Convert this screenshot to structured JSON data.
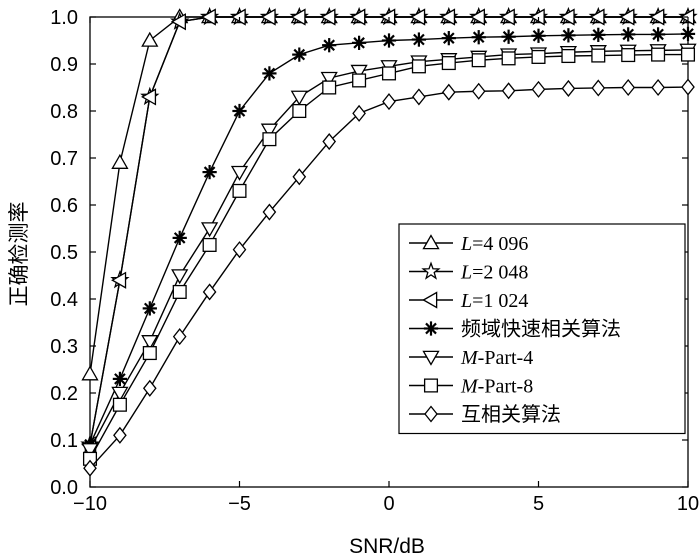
{
  "chart_data": {
    "type": "line",
    "xlabel": "SNR/dB",
    "ylabel": "正确检测率",
    "xlim": [
      -10,
      10
    ],
    "ylim": [
      0,
      1
    ],
    "xticks": [
      -10,
      -5,
      0,
      5,
      10
    ],
    "yticks": [
      0.0,
      0.1,
      0.2,
      0.3,
      0.4,
      0.5,
      0.6,
      0.7,
      0.8,
      0.9,
      1.0
    ],
    "xtick_labels": [
      "−10",
      "−5",
      "0",
      "5",
      "10"
    ],
    "ytick_labels": [
      "0.0",
      "0.1",
      "0.2",
      "0.3",
      "0.4",
      "0.5",
      "0.6",
      "0.7",
      "0.8",
      "0.9",
      "1.0"
    ],
    "grid": false,
    "legend_position": "center-right",
    "x": [
      -10,
      -9,
      -8,
      -7,
      -6,
      -5,
      -4,
      -3,
      -2,
      -1,
      0,
      1,
      2,
      3,
      4,
      5,
      6,
      7,
      8,
      9,
      10
    ],
    "series": [
      {
        "name": "L=4 096",
        "legend_italic": "L",
        "legend_rest": "=4 096",
        "marker": "triangle-up",
        "values": [
          0.24,
          0.69,
          0.95,
          1.0,
          1.0,
          1.0,
          1.0,
          1.0,
          1.0,
          1.0,
          1.0,
          1.0,
          1.0,
          1.0,
          1.0,
          1.0,
          1.0,
          1.0,
          1.0,
          1.0,
          1.0
        ]
      },
      {
        "name": "L=2 048",
        "legend_italic": "L",
        "legend_rest": "=2 048",
        "marker": "star",
        "values": [
          0.09,
          0.44,
          0.83,
          0.99,
          1.0,
          1.0,
          1.0,
          1.0,
          1.0,
          1.0,
          1.0,
          1.0,
          1.0,
          1.0,
          1.0,
          1.0,
          1.0,
          1.0,
          1.0,
          1.0,
          1.0
        ]
      },
      {
        "name": "L=1 024",
        "legend_italic": "L",
        "legend_rest": "=1 024",
        "marker": "triangle-left",
        "values": [
          0.09,
          0.44,
          0.83,
          0.99,
          1.0,
          1.0,
          1.0,
          1.0,
          1.0,
          1.0,
          1.0,
          1.0,
          1.0,
          1.0,
          1.0,
          1.0,
          1.0,
          1.0,
          1.0,
          1.0,
          1.0
        ]
      },
      {
        "name": "频域快速相关算法",
        "legend_italic": "",
        "legend_rest": "频域快速相关算法",
        "marker": "asterisk",
        "values": [
          0.09,
          0.23,
          0.38,
          0.53,
          0.67,
          0.8,
          0.88,
          0.92,
          0.94,
          0.945,
          0.95,
          0.952,
          0.955,
          0.957,
          0.958,
          0.96,
          0.961,
          0.962,
          0.963,
          0.963,
          0.964
        ]
      },
      {
        "name": "M-Part-4",
        "legend_italic": "M",
        "legend_rest": "-Part-4",
        "marker": "triangle-down",
        "values": [
          0.08,
          0.2,
          0.31,
          0.45,
          0.55,
          0.67,
          0.76,
          0.83,
          0.87,
          0.885,
          0.895,
          0.905,
          0.91,
          0.915,
          0.92,
          0.922,
          0.925,
          0.927,
          0.928,
          0.929,
          0.93
        ]
      },
      {
        "name": "M-Part-8",
        "legend_italic": "M",
        "legend_rest": "-Part-8",
        "marker": "square",
        "values": [
          0.06,
          0.175,
          0.285,
          0.415,
          0.515,
          0.63,
          0.74,
          0.8,
          0.85,
          0.865,
          0.88,
          0.895,
          0.902,
          0.908,
          0.912,
          0.915,
          0.917,
          0.918,
          0.919,
          0.92,
          0.92
        ]
      },
      {
        "name": "互相关算法",
        "legend_italic": "",
        "legend_rest": "互相关算法",
        "marker": "diamond",
        "values": [
          0.04,
          0.11,
          0.21,
          0.32,
          0.415,
          0.505,
          0.585,
          0.66,
          0.735,
          0.795,
          0.82,
          0.83,
          0.84,
          0.842,
          0.843,
          0.846,
          0.848,
          0.849,
          0.85,
          0.85,
          0.851
        ]
      }
    ]
  }
}
